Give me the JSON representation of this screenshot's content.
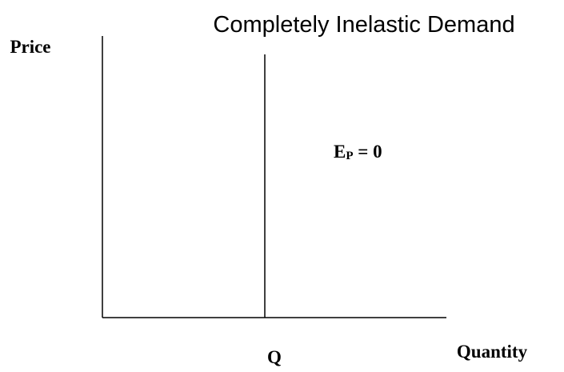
{
  "title": "Completely Inelastic Demand",
  "axes": {
    "y_label": "Price",
    "x_label": "Quantity"
  },
  "curve_label": "Q",
  "annotation": {
    "base": "E",
    "subscript": "P",
    "rest": " = 0"
  }
}
